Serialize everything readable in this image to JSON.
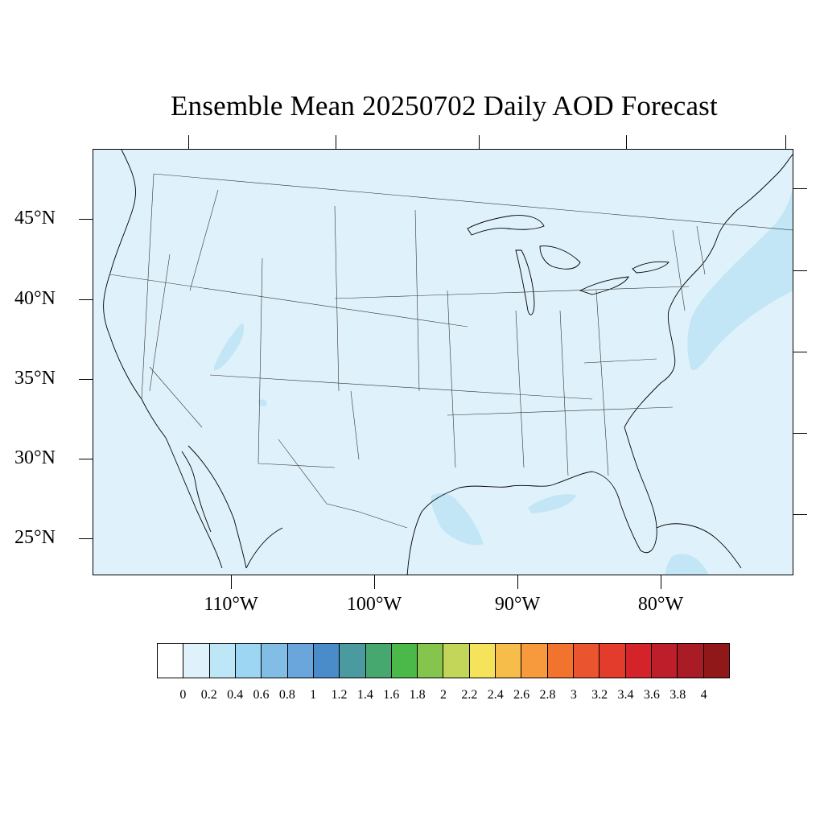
{
  "title": "Ensemble Mean 20250702 Daily AOD Forecast",
  "map": {
    "region": "Contiguous United States",
    "background_color": "#dff1fa",
    "lat_labels": [
      "45°N",
      "40°N",
      "35°N",
      "30°N",
      "25°N"
    ],
    "lon_labels": [
      "110°W",
      "100°W",
      "90°W",
      "80°W"
    ]
  },
  "colorbar": {
    "labels": [
      "0",
      "0.2",
      "0.4",
      "0.6",
      "0.8",
      "1",
      "1.2",
      "1.4",
      "1.6",
      "1.8",
      "2",
      "2.2",
      "2.4",
      "2.6",
      "2.8",
      "3",
      "3.2",
      "3.4",
      "3.6",
      "3.8",
      "4"
    ],
    "colors": [
      "#ffffff",
      "#dff1fa",
      "#bde6f7",
      "#9dd6f2",
      "#82bde6",
      "#6aa5db",
      "#4a8cc9",
      "#4a9aa0",
      "#47a86f",
      "#4bb84a",
      "#86c54d",
      "#c4d65a",
      "#f5e45b",
      "#f7bd4b",
      "#f79a3e",
      "#f2732e",
      "#ea5530",
      "#e33b2c",
      "#d42329",
      "#be1e2a",
      "#a91b25",
      "#901818"
    ]
  }
}
